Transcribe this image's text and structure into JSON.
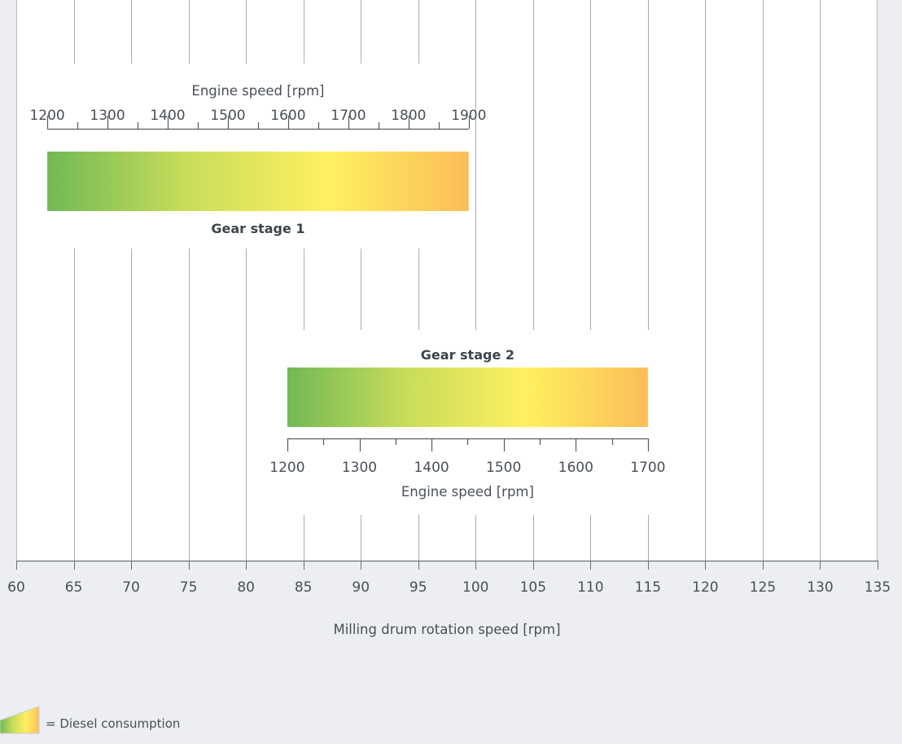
{
  "chart_data": {
    "type": "range-bar",
    "title": "",
    "xlabel": "Milling drum rotation speed [rpm]",
    "x_ticks": [
      60,
      65,
      70,
      75,
      80,
      85,
      90,
      95,
      100,
      105,
      110,
      115,
      120,
      125,
      130,
      135
    ],
    "xlim": [
      60,
      135
    ],
    "grid": true,
    "series": [
      {
        "name": "Gear stage 1",
        "drum_speed_range": [
          62.7,
          99.4
        ],
        "engine_speed_label": "Engine speed [rpm]",
        "engine_speed_ticks": [
          1200,
          1300,
          1400,
          1500,
          1600,
          1700,
          1800,
          1900
        ],
        "engine_speed_axis_position": "top"
      },
      {
        "name": "Gear stage 2",
        "drum_speed_range": [
          83.6,
          115.0
        ],
        "engine_speed_label": "Engine speed [rpm]",
        "engine_speed_ticks": [
          1200,
          1300,
          1400,
          1500,
          1600,
          1700
        ],
        "engine_speed_axis_position": "bottom"
      }
    ],
    "gradient_colors": [
      "#71b955",
      "#c9dd5b",
      "#fff060",
      "#fbbd59"
    ],
    "legend": {
      "label": "= Diesel consumption",
      "placement": "bottom-left"
    }
  }
}
